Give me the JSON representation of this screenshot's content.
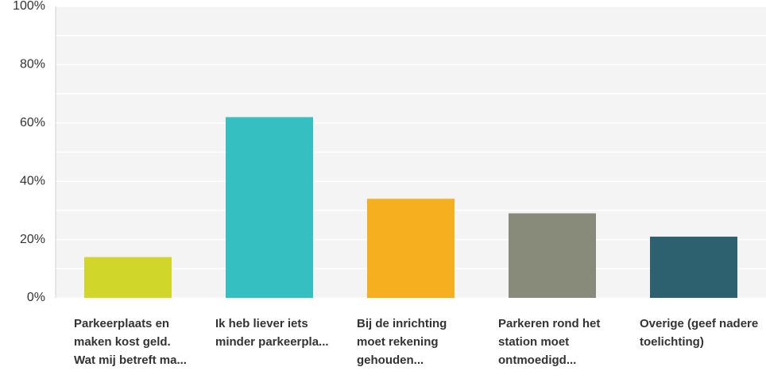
{
  "chart_data": {
    "type": "bar",
    "categories": [
      "Parkeerplaats en maken kost geld. Wat mij betreft ma...",
      "Ik heb liever iets minder parkeerpla...",
      "Bij de inrichting moet rekening gehouden...",
      "Parkeren rond het station moet ontmoedigd...",
      "Overige (geef nadere toelichting)"
    ],
    "values": [
      14,
      62,
      34,
      29,
      21
    ],
    "colors": [
      "#d1d62a",
      "#35bfc0",
      "#f6b01f",
      "#898b7a",
      "#2d6170"
    ],
    "ylim": [
      0,
      100
    ],
    "yticks": [
      {
        "value": 0,
        "label": "0%"
      },
      {
        "value": 20,
        "label": "20%"
      },
      {
        "value": 40,
        "label": "40%"
      },
      {
        "value": 60,
        "label": "60%"
      },
      {
        "value": 80,
        "label": "80%"
      },
      {
        "value": 100,
        "label": "100%"
      }
    ],
    "minor_yticks": [
      10,
      30,
      50,
      70,
      90
    ],
    "grid": true
  }
}
